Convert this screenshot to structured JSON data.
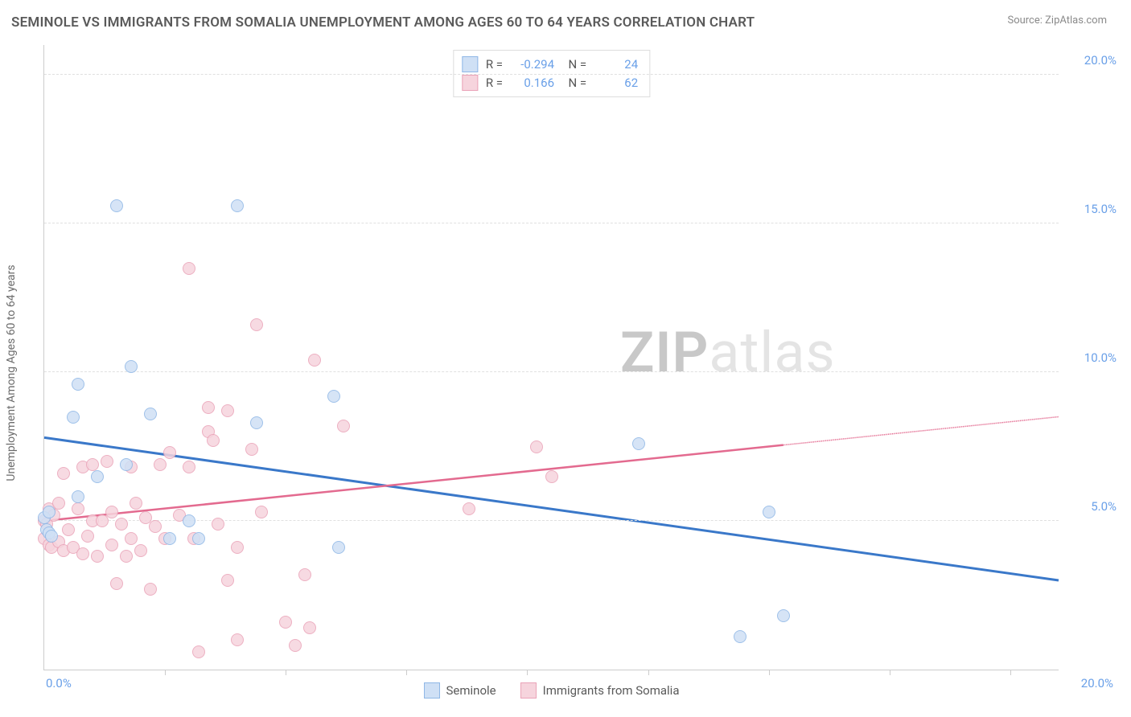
{
  "title": "SEMINOLE VS IMMIGRANTS FROM SOMALIA UNEMPLOYMENT AMONG AGES 60 TO 64 YEARS CORRELATION CHART",
  "source": "Source: ZipAtlas.com",
  "ylabel": "Unemployment Among Ages 60 to 64 years",
  "watermark_a": "ZIP",
  "watermark_b": "atlas",
  "chart": {
    "type": "scatter",
    "xlim": [
      0,
      21
    ],
    "ylim": [
      0,
      21
    ],
    "ytick_step": 5,
    "xtick_positions": [
      0,
      2.5,
      5,
      7.5,
      10,
      12.5,
      15,
      17.5,
      20
    ],
    "yticks": [
      {
        "v": 5,
        "label": "5.0%"
      },
      {
        "v": 10,
        "label": "10.0%"
      },
      {
        "v": 15,
        "label": "15.0%"
      },
      {
        "v": 20,
        "label": "20.0%"
      }
    ],
    "x_label_min": "0.0%",
    "x_label_max": "20.0%",
    "background_color": "#ffffff",
    "grid_color": "#e0e0e0",
    "series": [
      {
        "name": "Seminole",
        "fill": "#cfe0f5",
        "stroke": "#8fb7e6",
        "line_color": "#3a78c9",
        "R": "-0.294",
        "N": "24",
        "trend": {
          "x1": 0,
          "y1": 7.8,
          "x2": 21,
          "y2": 3.0,
          "dash_from_x": null
        },
        "points": [
          [
            0.0,
            5.1
          ],
          [
            0.05,
            4.7
          ],
          [
            0.1,
            5.3
          ],
          [
            0.1,
            4.6
          ],
          [
            0.15,
            4.5
          ],
          [
            0.6,
            8.5
          ],
          [
            0.7,
            9.6
          ],
          [
            0.7,
            5.8
          ],
          [
            1.1,
            6.5
          ],
          [
            1.5,
            15.6
          ],
          [
            1.7,
            6.9
          ],
          [
            1.8,
            10.2
          ],
          [
            2.2,
            8.6
          ],
          [
            2.6,
            4.4
          ],
          [
            3.0,
            5.0
          ],
          [
            3.2,
            4.4
          ],
          [
            4.0,
            15.6
          ],
          [
            4.4,
            8.3
          ],
          [
            6.0,
            9.2
          ],
          [
            6.1,
            4.1
          ],
          [
            12.3,
            7.6
          ],
          [
            14.4,
            1.1
          ],
          [
            15.0,
            5.3
          ],
          [
            15.3,
            1.8
          ]
        ]
      },
      {
        "name": "Immigrants from Somalia",
        "fill": "#f6d4dd",
        "stroke": "#eaa3b8",
        "line_color": "#e36a8f",
        "R": "0.166",
        "N": "62",
        "trend": {
          "x1": 0,
          "y1": 5.0,
          "x2": 21,
          "y2": 8.5,
          "dash_from_x": 15.3
        },
        "points": [
          [
            0.0,
            5.0
          ],
          [
            0.0,
            4.4
          ],
          [
            0.05,
            4.9
          ],
          [
            0.1,
            5.4
          ],
          [
            0.1,
            4.2
          ],
          [
            0.15,
            4.1
          ],
          [
            0.2,
            5.2
          ],
          [
            0.3,
            4.3
          ],
          [
            0.3,
            5.6
          ],
          [
            0.4,
            6.6
          ],
          [
            0.4,
            4.0
          ],
          [
            0.5,
            4.7
          ],
          [
            0.6,
            4.1
          ],
          [
            0.7,
            5.4
          ],
          [
            0.8,
            3.9
          ],
          [
            0.8,
            6.8
          ],
          [
            0.9,
            4.5
          ],
          [
            1.0,
            5.0
          ],
          [
            1.0,
            6.9
          ],
          [
            1.1,
            3.8
          ],
          [
            1.2,
            5.0
          ],
          [
            1.3,
            7.0
          ],
          [
            1.4,
            5.3
          ],
          [
            1.4,
            4.2
          ],
          [
            1.5,
            2.9
          ],
          [
            1.6,
            4.9
          ],
          [
            1.7,
            3.8
          ],
          [
            1.8,
            6.8
          ],
          [
            1.8,
            4.4
          ],
          [
            1.9,
            5.6
          ],
          [
            2.0,
            4.0
          ],
          [
            2.1,
            5.1
          ],
          [
            2.2,
            2.7
          ],
          [
            2.3,
            4.8
          ],
          [
            2.4,
            6.9
          ],
          [
            2.5,
            4.4
          ],
          [
            2.6,
            7.3
          ],
          [
            2.8,
            5.2
          ],
          [
            3.0,
            13.5
          ],
          [
            3.0,
            6.8
          ],
          [
            3.1,
            4.4
          ],
          [
            3.2,
            0.6
          ],
          [
            3.4,
            8.0
          ],
          [
            3.4,
            8.8
          ],
          [
            3.5,
            7.7
          ],
          [
            3.6,
            4.9
          ],
          [
            3.8,
            3.0
          ],
          [
            3.8,
            8.7
          ],
          [
            4.0,
            4.1
          ],
          [
            4.0,
            1.0
          ],
          [
            4.3,
            7.4
          ],
          [
            4.4,
            11.6
          ],
          [
            4.5,
            5.3
          ],
          [
            5.0,
            1.6
          ],
          [
            5.2,
            0.8
          ],
          [
            5.4,
            3.2
          ],
          [
            5.5,
            1.4
          ],
          [
            5.6,
            10.4
          ],
          [
            6.2,
            8.2
          ],
          [
            8.8,
            5.4
          ],
          [
            10.2,
            7.5
          ],
          [
            10.5,
            6.5
          ]
        ]
      }
    ],
    "bottom_legend": [
      {
        "label": "Seminole",
        "fill": "#cfe0f5",
        "stroke": "#8fb7e6"
      },
      {
        "label": "Immigrants from Somalia",
        "fill": "#f6d4dd",
        "stroke": "#eaa3b8"
      }
    ]
  }
}
